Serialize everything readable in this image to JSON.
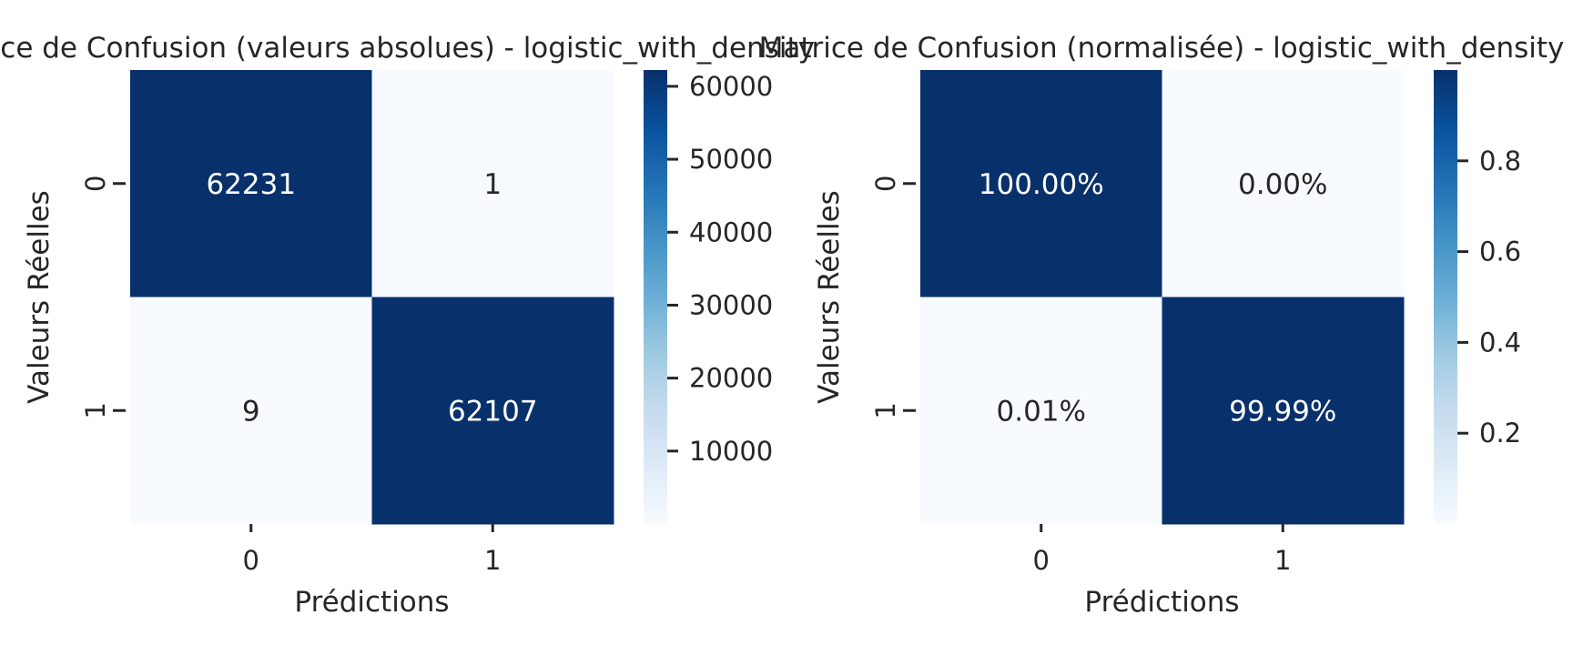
{
  "chart_data": [
    {
      "type": "heatmap",
      "title": "Matrice de Confusion (valeurs absolues) - logistic_with_density",
      "xlabel": "Prédictions",
      "ylabel": "Valeurs Réelles",
      "x_categories": [
        "0",
        "1"
      ],
      "y_categories": [
        "0",
        "1"
      ],
      "values": [
        [
          62231,
          1
        ],
        [
          9,
          62107
        ]
      ],
      "cell_labels": [
        [
          "62231",
          "1"
        ],
        [
          "9",
          "62107"
        ]
      ],
      "colorbar": {
        "colormap": "Blues",
        "vmin": 1,
        "vmax": 62231,
        "ticks": [
          10000,
          20000,
          30000,
          40000,
          50000,
          60000
        ],
        "tick_labels": [
          "10000",
          "20000",
          "30000",
          "40000",
          "50000",
          "60000"
        ]
      }
    },
    {
      "type": "heatmap",
      "title": "Matrice de Confusion (normalisée) - logistic_with_density",
      "xlabel": "Prédictions",
      "ylabel": "Valeurs Réelles",
      "x_categories": [
        "0",
        "1"
      ],
      "y_categories": [
        "0",
        "1"
      ],
      "values": [
        [
          1.0,
          0.0
        ],
        [
          0.0001,
          0.9999
        ]
      ],
      "cell_labels": [
        [
          "100.00%",
          "0.00%"
        ],
        [
          "0.01%",
          "99.99%"
        ]
      ],
      "colorbar": {
        "colormap": "Blues",
        "vmin": 0.0,
        "vmax": 1.0,
        "ticks": [
          0.2,
          0.4,
          0.6,
          0.8
        ],
        "tick_labels": [
          "0.2",
          "0.4",
          "0.6",
          "0.8"
        ]
      }
    }
  ]
}
